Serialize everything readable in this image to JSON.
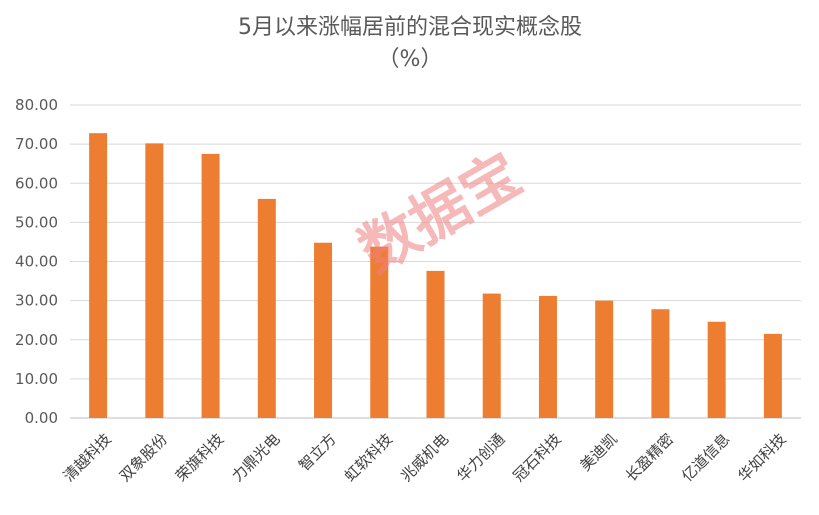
{
  "chart_data": {
    "type": "bar",
    "title": "5月以来涨幅居前的混合现实概念股",
    "subtitle": "（%）",
    "categories": [
      "清越科技",
      "双象股份",
      "荣旗科技",
      "力鼎光电",
      "智立方",
      "虹软科技",
      "兆威机电",
      "华力创通",
      "冠石科技",
      "美迪凯",
      "长盈精密",
      "亿道信息",
      "华如科技"
    ],
    "values": [
      72.8,
      70.2,
      67.5,
      56.0,
      44.8,
      43.8,
      37.6,
      31.8,
      31.2,
      30.0,
      27.8,
      24.6,
      21.5
    ],
    "yticks": [
      "0.00",
      "10.00",
      "20.00",
      "30.00",
      "40.00",
      "50.00",
      "60.00",
      "70.00",
      "80.00"
    ],
    "ylim": [
      0,
      80
    ],
    "grid": true,
    "bar_color": "#ED7D31",
    "watermark": "数据宝"
  }
}
